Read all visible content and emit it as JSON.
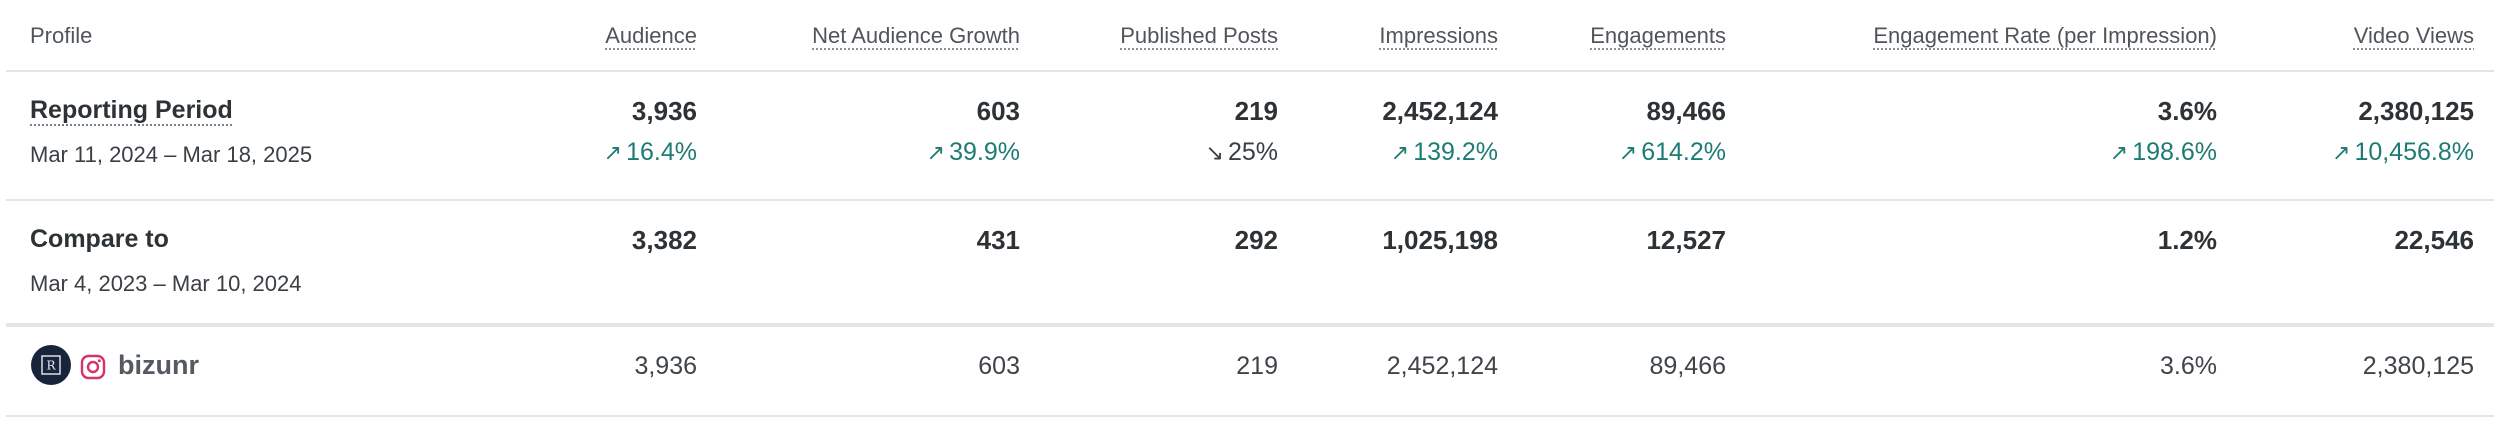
{
  "header": {
    "profile": "Profile",
    "audience": "Audience",
    "net_audience_growth": "Net Audience Growth",
    "published_posts": "Published Posts",
    "impressions": "Impressions",
    "engagements": "Engagements",
    "engagement_rate": "Engagement Rate (per Impression)",
    "video_views": "Video Views"
  },
  "reporting_period": {
    "label": "Reporting Period",
    "dates": "Mar 11, 2024 – Mar 18, 2025",
    "audience": "3,936",
    "net_audience_growth": "603",
    "published_posts": "219",
    "impressions": "2,452,124",
    "engagements": "89,466",
    "engagement_rate": "3.6%",
    "video_views": "2,380,125",
    "changes": {
      "audience": {
        "arrow": "↗",
        "value": "16.4%"
      },
      "net_audience_growth": {
        "arrow": "↗",
        "value": "39.9%"
      },
      "published_posts": {
        "arrow": "↘",
        "value": "25%"
      },
      "impressions": {
        "arrow": "↗",
        "value": "139.2%"
      },
      "engagements": {
        "arrow": "↗",
        "value": "614.2%"
      },
      "engagement_rate": {
        "arrow": "↗",
        "value": "198.6%"
      },
      "video_views": {
        "arrow": "↗",
        "value": "10,456.8%"
      }
    }
  },
  "compare_to": {
    "label": "Compare to",
    "dates": "Mar 4, 2023 – Mar 10, 2024",
    "audience": "3,382",
    "net_audience_growth": "431",
    "published_posts": "292",
    "impressions": "1,025,198",
    "engagements": "12,527",
    "engagement_rate": "1.2%",
    "video_views": "22,546"
  },
  "profile_row": {
    "name": "bizunr",
    "network_icon": "instagram-icon",
    "avatar_icon": "brand-logo-avatar",
    "audience": "3,936",
    "net_audience_growth": "603",
    "published_posts": "219",
    "impressions": "2,452,124",
    "engagements": "89,466",
    "engagement_rate": "3.6%",
    "video_views": "2,380,125"
  },
  "colors": {
    "positive": "#1e7b74",
    "instagram": "#d6336c",
    "avatar_bg": "#17243b",
    "divider": "#e3e5e8"
  }
}
